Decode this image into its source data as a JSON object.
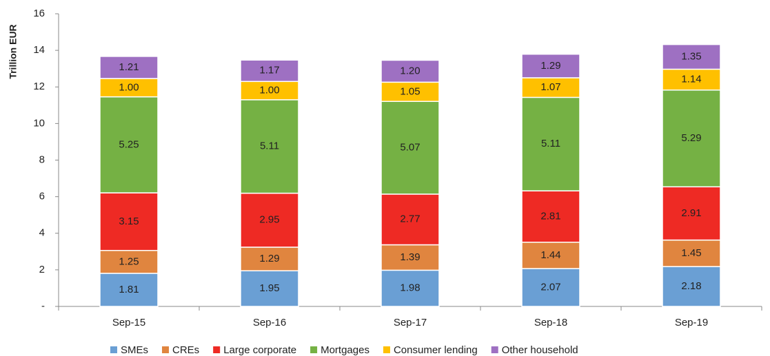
{
  "chart_data": {
    "type": "stacked_bar",
    "y_label": "Trillion EUR",
    "categories": [
      "Sep-15",
      "Sep-16",
      "Sep-17",
      "Sep-18",
      "Sep-19"
    ],
    "series": [
      {
        "name": "SMEs",
        "color": "#6a9fd4",
        "values": [
          1.81,
          1.95,
          1.98,
          2.07,
          2.18
        ],
        "value_labels": [
          "1.81",
          "1.95",
          "1.98",
          "2.07",
          "2.18"
        ]
      },
      {
        "name": "CREs",
        "color": "#e0853f",
        "values": [
          1.25,
          1.29,
          1.39,
          1.44,
          1.45
        ],
        "value_labels": [
          "1.25",
          "1.29",
          "1.39",
          "1.44",
          "1.45"
        ]
      },
      {
        "name": "Large corporate",
        "color": "#ee2a24",
        "values": [
          3.15,
          2.95,
          2.77,
          2.81,
          2.91
        ],
        "value_labels": [
          "3.15",
          "2.95",
          "2.77",
          "2.81",
          "2.91"
        ]
      },
      {
        "name": "Mortgages",
        "color": "#75b144",
        "values": [
          5.25,
          5.11,
          5.07,
          5.11,
          5.29
        ],
        "value_labels": [
          "5.25",
          "5.11",
          "5.07",
          "5.11",
          "5.29"
        ]
      },
      {
        "name": "Consumer lending",
        "color": "#ffc000",
        "values": [
          1.0,
          1.0,
          1.05,
          1.07,
          1.14
        ],
        "value_labels": [
          "1.00",
          "1.00",
          "1.05",
          "1.07",
          "1.14"
        ]
      },
      {
        "name": "Other household",
        "color": "#9e70c2",
        "values": [
          1.21,
          1.17,
          1.2,
          1.29,
          1.35
        ],
        "value_labels": [
          "1.21",
          "1.17",
          "1.20",
          "1.29",
          "1.35"
        ]
      }
    ],
    "ylim": [
      0,
      16
    ],
    "yticks": [
      {
        "value": 0,
        "label": "-"
      },
      2,
      4,
      6,
      8,
      10,
      12,
      14,
      16
    ],
    "grid": false,
    "legend": "bottom"
  }
}
